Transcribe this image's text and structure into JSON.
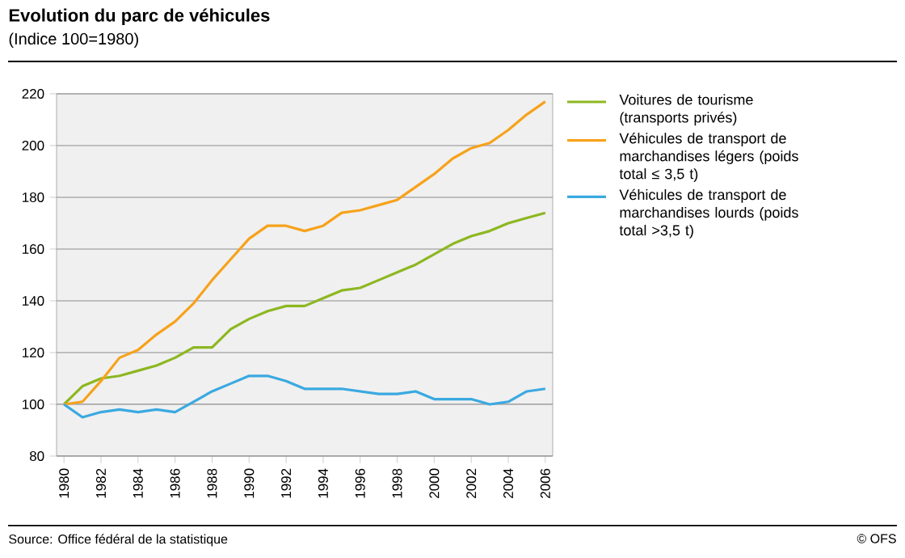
{
  "chart_data": {
    "type": "line",
    "title": "Evolution du parc de véhicules",
    "subtitle": "(Indice 100=1980)",
    "x": [
      1980,
      1981,
      1982,
      1983,
      1984,
      1985,
      1986,
      1987,
      1988,
      1989,
      1990,
      1991,
      1992,
      1993,
      1994,
      1995,
      1996,
      1997,
      1998,
      1999,
      2000,
      2001,
      2002,
      2003,
      2004,
      2005,
      2006
    ],
    "series": [
      {
        "name": "Voitures de tourisme (transports privés)",
        "color": "#8db721",
        "values": [
          100,
          107,
          110,
          111,
          113,
          115,
          118,
          122,
          122,
          129,
          133,
          136,
          138,
          138,
          141,
          144,
          145,
          148,
          151,
          154,
          158,
          162,
          165,
          167,
          170,
          172,
          174
        ]
      },
      {
        "name": "Véhicules de transport de marchandises légers (poids total ≤ 3,5 t)",
        "color": "#f7a21b",
        "values": [
          100,
          101,
          109,
          118,
          121,
          127,
          132,
          139,
          148,
          156,
          164,
          169,
          169,
          167,
          169,
          174,
          175,
          177,
          179,
          184,
          189,
          195,
          199,
          201,
          206,
          212,
          217
        ]
      },
      {
        "name": "Véhicules de transport de marchandises lourds (poids total >3,5 t)",
        "color": "#3aa9e0",
        "values": [
          100,
          95,
          97,
          98,
          97,
          98,
          97,
          101,
          105,
          108,
          111,
          111,
          109,
          106,
          106,
          106,
          105,
          104,
          104,
          105,
          102,
          102,
          102,
          100,
          101,
          105,
          106
        ]
      }
    ],
    "xlim": [
      1979.6,
      2006.4
    ],
    "xticks": [
      1980,
      1982,
      1984,
      1986,
      1988,
      1990,
      1992,
      1994,
      1996,
      1998,
      2000,
      2002,
      2004,
      2006
    ],
    "ylim": [
      80,
      220
    ],
    "yticks": [
      80,
      100,
      120,
      140,
      160,
      180,
      200,
      220
    ],
    "grid": "y",
    "legend": "right",
    "annotations": [
      "Source: Office fédéral de la statistique",
      "© OFS"
    ]
  }
}
